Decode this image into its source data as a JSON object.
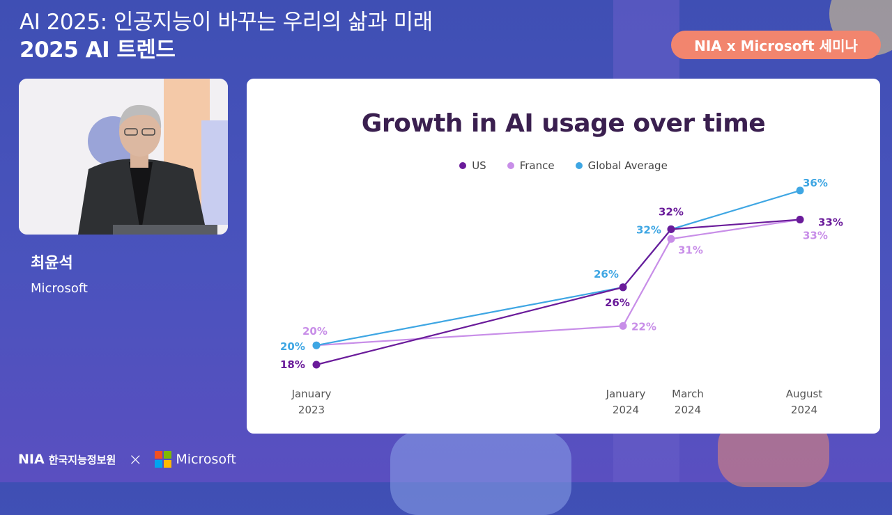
{
  "header": {
    "title_line1": "AI 2025: 인공지능이 바꾸는 우리의 삶과 미래",
    "title_line2": "2025 AI 트렌드",
    "badge": "NIA x Microsoft 세미나"
  },
  "speaker": {
    "name": "최윤석",
    "organization": "Microsoft"
  },
  "footer": {
    "nia_label": "NIA",
    "nia_korean": "한국지능정보원",
    "separator": "×",
    "microsoft_label": "Microsoft"
  },
  "colors": {
    "us": "#6a1b9a",
    "france": "#c88ee8",
    "global": "#3ea6e3",
    "title": "#3a1f4f",
    "badge": "#f2856e"
  },
  "chart_data": {
    "type": "line",
    "title": "Growth in AI usage over time",
    "categories": [
      "January 2023",
      "January 2024",
      "March 2024",
      "August 2024"
    ],
    "tick_labels": [
      [
        "January",
        "2023"
      ],
      [
        "January",
        "2024"
      ],
      [
        "March",
        "2024"
      ],
      [
        "August",
        "2024"
      ]
    ],
    "series": [
      {
        "name": "US",
        "values": [
          18,
          26,
          32,
          33
        ],
        "labels": [
          "18%",
          "26%",
          "32%",
          "33%"
        ]
      },
      {
        "name": "France",
        "values": [
          20,
          22,
          31,
          33
        ],
        "labels": [
          "20%",
          "22%",
          "31%",
          "33%"
        ]
      },
      {
        "name": "Global Average",
        "values": [
          20,
          26,
          32,
          36
        ],
        "labels": [
          "20%",
          "26%",
          "32%",
          "36%"
        ]
      }
    ],
    "legend_position": "top-center",
    "grid": false
  }
}
